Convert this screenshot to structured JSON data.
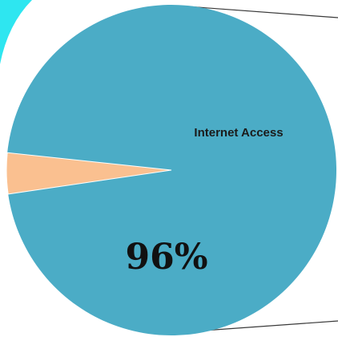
{
  "chart_data": {
    "type": "pie",
    "title": "",
    "slices": [
      {
        "name": "Internet Access",
        "value": 96,
        "label": "Internet Access",
        "percent_label": "96%",
        "color": "#4BACC6"
      },
      {
        "name": "",
        "value": 4,
        "label": "",
        "percent_label": "",
        "color": "#FAC090"
      }
    ],
    "legend": "none"
  },
  "colors": {
    "background_accent": "#2EE6F0",
    "connector_line": "#3a3a3a"
  }
}
